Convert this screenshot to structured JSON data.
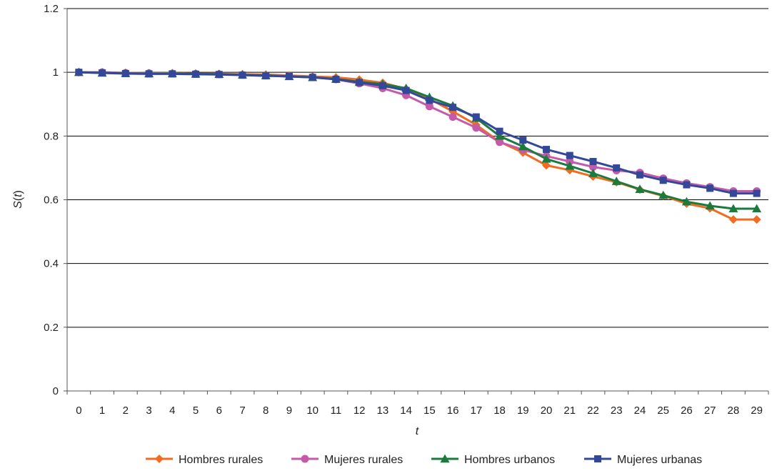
{
  "chart_data": {
    "type": "line",
    "title": "",
    "xlabel": "t",
    "ylabel": "S(t)",
    "ylabel_parts": {
      "symbol": "S",
      "open": "(",
      "var": "t",
      "close": ")"
    },
    "ylim": [
      0,
      1.2
    ],
    "y_ticks": [
      "0",
      "0.2",
      "0.4",
      "0.6",
      "0.8",
      "1",
      "1.2"
    ],
    "y_tick_values": [
      0,
      0.2,
      0.4,
      0.6,
      0.8,
      1.0,
      1.2
    ],
    "x": [
      0,
      1,
      2,
      3,
      4,
      5,
      6,
      7,
      8,
      9,
      10,
      11,
      12,
      13,
      14,
      15,
      16,
      17,
      18,
      19,
      20,
      21,
      22,
      23,
      24,
      25,
      26,
      27,
      28,
      29
    ],
    "x_ticks": [
      "0",
      "1",
      "2",
      "3",
      "4",
      "5",
      "6",
      "7",
      "8",
      "9",
      "10",
      "11",
      "12",
      "13",
      "14",
      "15",
      "16",
      "17",
      "18",
      "19",
      "20",
      "21",
      "22",
      "23",
      "24",
      "25",
      "26",
      "27",
      "28",
      "29"
    ],
    "grid": "horizontal",
    "legend_position": "bottom",
    "series": [
      {
        "name": "Hombres rurales",
        "color": "#f26b21",
        "marker": "diamond",
        "values": [
          1.0,
          1.0,
          0.998,
          0.997,
          0.997,
          0.996,
          0.995,
          0.994,
          0.993,
          0.99,
          0.987,
          0.984,
          0.977,
          0.967,
          0.948,
          0.917,
          0.877,
          0.835,
          0.782,
          0.748,
          0.708,
          0.693,
          0.673,
          0.655,
          0.632,
          0.612,
          0.588,
          0.573,
          0.538,
          0.538
        ]
      },
      {
        "name": "Mujeres rurales",
        "color": "#c55aa8",
        "marker": "circle",
        "values": [
          1.0,
          1.0,
          0.998,
          0.997,
          0.996,
          0.995,
          0.994,
          0.992,
          0.99,
          0.988,
          0.985,
          0.978,
          0.965,
          0.95,
          0.928,
          0.893,
          0.86,
          0.826,
          0.781,
          0.757,
          0.737,
          0.72,
          0.703,
          0.692,
          0.685,
          0.667,
          0.652,
          0.64,
          0.627,
          0.627
        ]
      },
      {
        "name": "Hombres urbanos",
        "color": "#1b7a3d",
        "marker": "triangle",
        "values": [
          1.0,
          0.998,
          0.997,
          0.996,
          0.996,
          0.995,
          0.994,
          0.992,
          0.99,
          0.987,
          0.984,
          0.979,
          0.97,
          0.963,
          0.95,
          0.922,
          0.895,
          0.856,
          0.8,
          0.767,
          0.728,
          0.706,
          0.683,
          0.658,
          0.633,
          0.614,
          0.594,
          0.581,
          0.572,
          0.572
        ]
      },
      {
        "name": "Mujeres urbanas",
        "color": "#34489a",
        "marker": "square",
        "values": [
          1.0,
          0.998,
          0.996,
          0.995,
          0.995,
          0.994,
          0.993,
          0.991,
          0.989,
          0.987,
          0.984,
          0.978,
          0.968,
          0.958,
          0.943,
          0.912,
          0.89,
          0.86,
          0.815,
          0.787,
          0.758,
          0.739,
          0.72,
          0.7,
          0.678,
          0.661,
          0.647,
          0.636,
          0.62,
          0.62
        ]
      }
    ]
  }
}
